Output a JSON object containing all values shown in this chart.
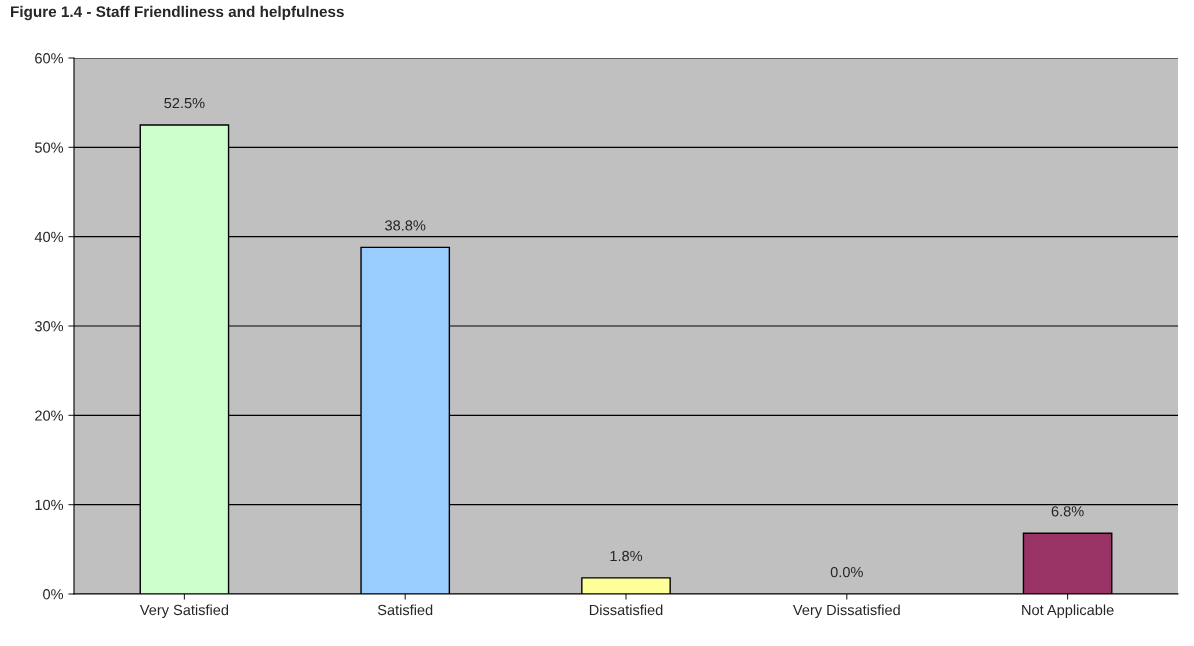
{
  "chart_data": {
    "type": "bar",
    "title": "Figure 1.4 - Staff Friendliness and helpfulness",
    "categories": [
      "Very Satisfied",
      "Satisfied",
      "Dissatisfied",
      "Very Dissatisfied",
      "Not Applicable"
    ],
    "values": [
      52.5,
      38.8,
      1.8,
      0.0,
      6.8
    ],
    "colors": [
      "#ccffcc",
      "#99ccff",
      "#ffff99",
      "#c0c0c0",
      "#993366"
    ],
    "value_labels": [
      "52.5%",
      "38.8%",
      "1.8%",
      "0.0%",
      "6.8%"
    ],
    "ylim": [
      0,
      60
    ],
    "yticks": [
      {
        "value": 0,
        "label": "0%"
      },
      {
        "value": 10,
        "label": "10%"
      },
      {
        "value": 20,
        "label": "20%"
      },
      {
        "value": 30,
        "label": "30%"
      },
      {
        "value": 40,
        "label": "40%"
      },
      {
        "value": 50,
        "label": "50%"
      },
      {
        "value": 60,
        "label": "60%"
      }
    ],
    "grid": "y"
  }
}
